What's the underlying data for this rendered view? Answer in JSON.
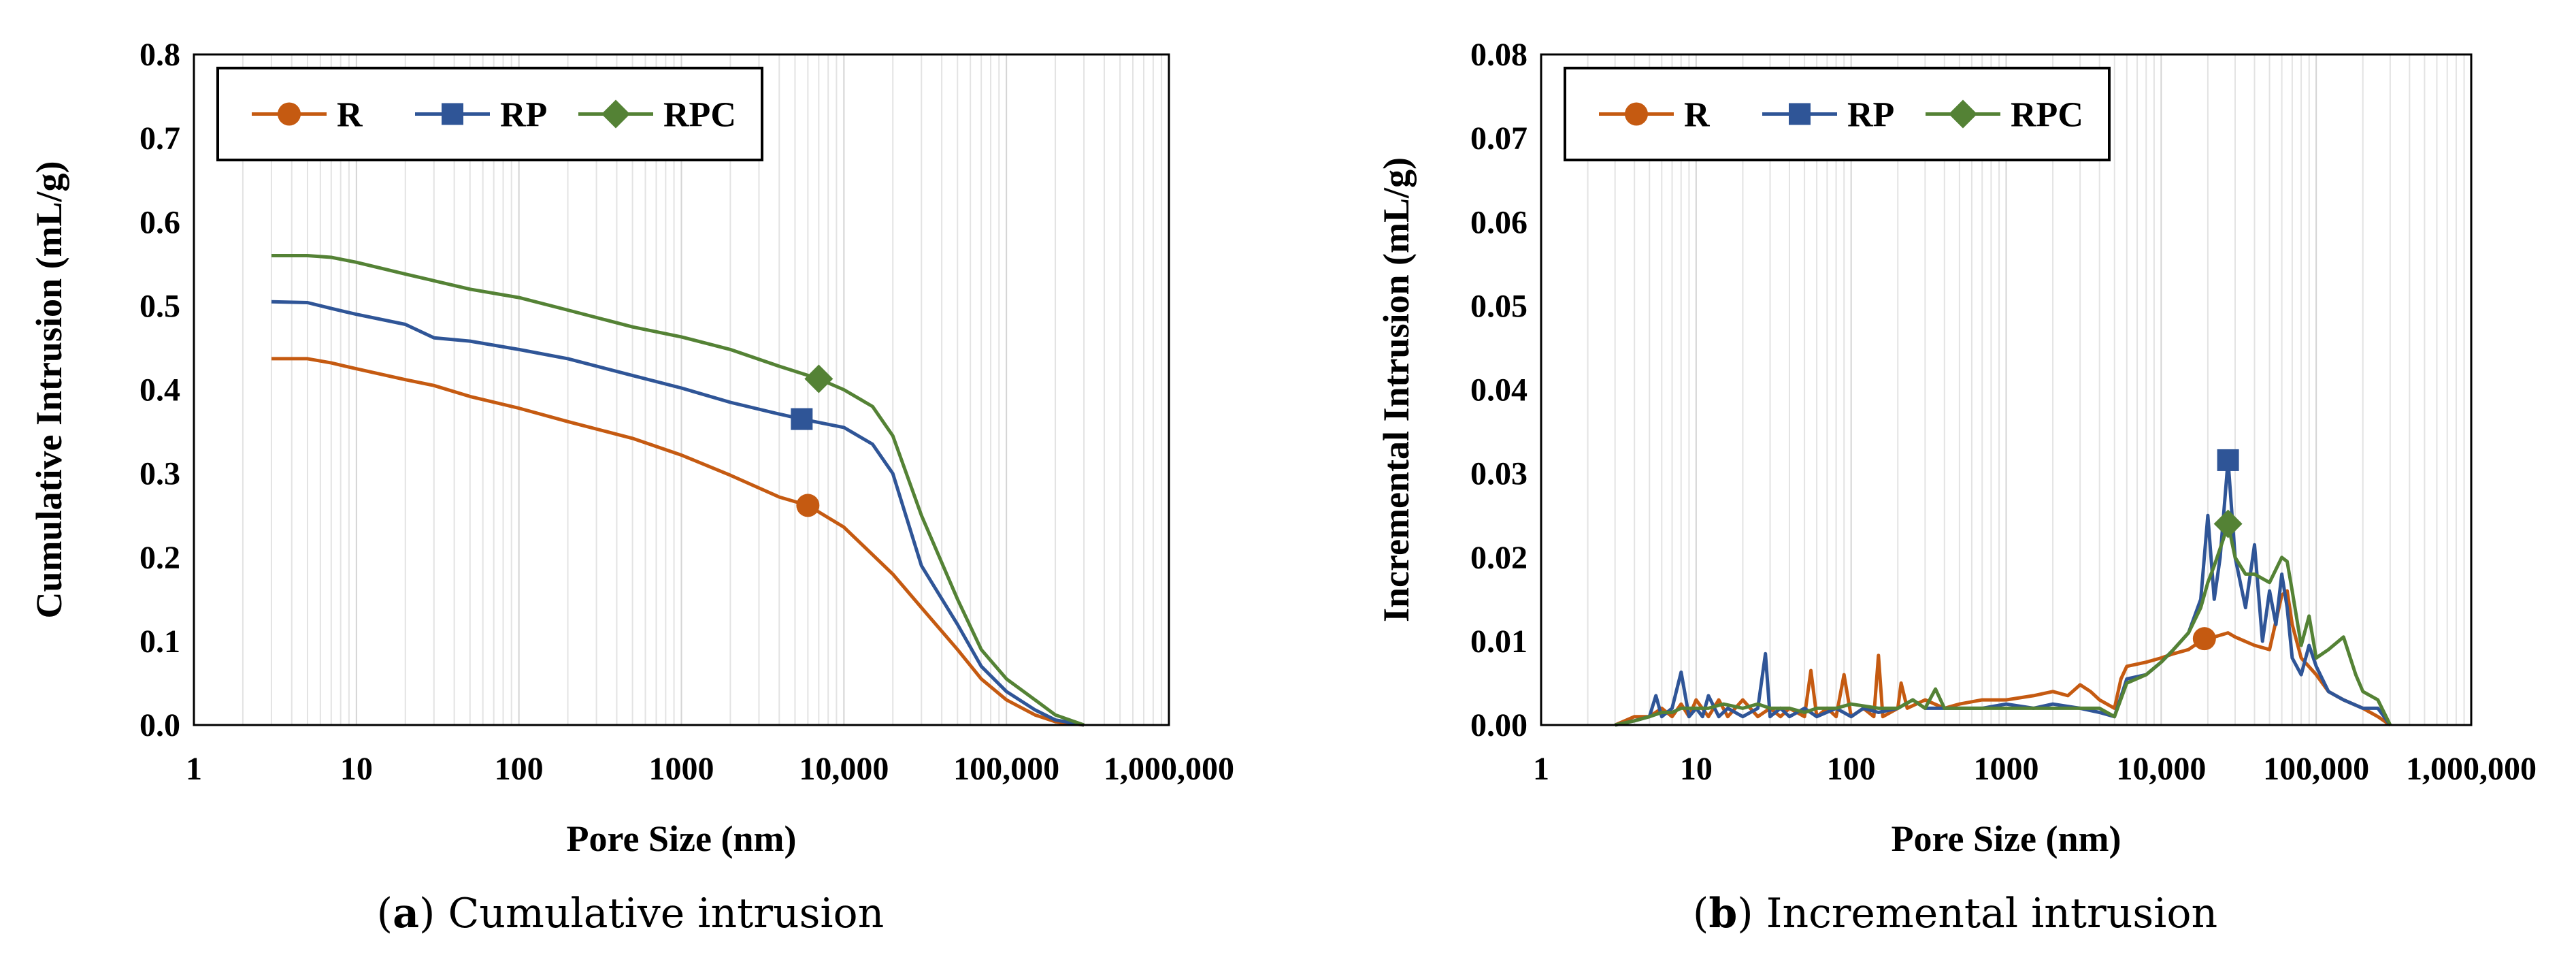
{
  "colors": {
    "R": "#C55A11",
    "RP": "#2F5597",
    "RPC": "#548235"
  },
  "captions": {
    "a_letter": "a",
    "a_text": "Cumulative intrusion",
    "b_letter": "b",
    "b_text": "Incremental intrusion"
  },
  "chart_data": [
    {
      "type": "line",
      "title": "",
      "xlabel": "Pore Size (nm)",
      "ylabel": "Cumulative Intrusion (mL/g)",
      "xscale": "log",
      "xlim": [
        1,
        1000000
      ],
      "ylim": [
        0,
        0.8
      ],
      "xticks": [
        1,
        10,
        100,
        1000,
        10000,
        100000,
        1000000
      ],
      "xtick_labels": [
        "1",
        "10",
        "100",
        "1000",
        "10,000",
        "100,000",
        "1,000,000"
      ],
      "yticks": [
        0,
        0.1,
        0.2,
        0.3,
        0.4,
        0.5,
        0.6,
        0.7,
        0.8
      ],
      "ytick_labels": [
        "0.0",
        "0.1",
        "0.2",
        "0.3",
        "0.4",
        "0.5",
        "0.6",
        "0.7",
        "0.8"
      ],
      "legend": "top-left",
      "series": [
        {
          "name": "R",
          "marker": "circle",
          "marker_at": [
            6000,
            0.262
          ],
          "x": [
            3,
            5,
            7,
            10,
            20,
            30,
            50,
            100,
            200,
            500,
            1000,
            2000,
            4000,
            6000,
            10000,
            20000,
            30000,
            50000,
            70000,
            100000,
            150000,
            200000,
            300000
          ],
          "y": [
            0.437,
            0.437,
            0.432,
            0.425,
            0.412,
            0.405,
            0.392,
            0.378,
            0.362,
            0.342,
            0.322,
            0.298,
            0.272,
            0.262,
            0.236,
            0.18,
            0.14,
            0.09,
            0.055,
            0.03,
            0.012,
            0.004,
            0.0
          ]
        },
        {
          "name": "RP",
          "marker": "square",
          "marker_at": [
            5500,
            0.365
          ],
          "x": [
            3,
            5,
            7,
            10,
            20,
            30,
            50,
            100,
            200,
            500,
            1000,
            2000,
            4000,
            5500,
            10000,
            15000,
            20000,
            30000,
            50000,
            70000,
            100000,
            150000,
            200000,
            300000
          ],
          "y": [
            0.505,
            0.504,
            0.497,
            0.49,
            0.478,
            0.462,
            0.458,
            0.448,
            0.437,
            0.417,
            0.402,
            0.385,
            0.371,
            0.365,
            0.355,
            0.335,
            0.3,
            0.19,
            0.12,
            0.07,
            0.04,
            0.018,
            0.006,
            0.0
          ]
        },
        {
          "name": "RPC",
          "marker": "diamond",
          "marker_at": [
            7000,
            0.413
          ],
          "x": [
            3,
            5,
            7,
            10,
            20,
            30,
            50,
            100,
            200,
            500,
            1000,
            2000,
            4000,
            7000,
            10000,
            15000,
            20000,
            30000,
            50000,
            70000,
            100000,
            150000,
            200000,
            300000
          ],
          "y": [
            0.56,
            0.56,
            0.558,
            0.552,
            0.538,
            0.53,
            0.52,
            0.51,
            0.495,
            0.475,
            0.463,
            0.448,
            0.428,
            0.413,
            0.4,
            0.38,
            0.345,
            0.25,
            0.15,
            0.09,
            0.055,
            0.03,
            0.012,
            0.0
          ]
        }
      ]
    },
    {
      "type": "line",
      "title": "",
      "xlabel": "Pore Size (nm)",
      "ylabel": "Incremental Intrusion (mL/g)",
      "xscale": "log",
      "xlim": [
        1,
        1000000
      ],
      "ylim": [
        0,
        0.08
      ],
      "xticks": [
        1,
        10,
        100,
        1000,
        10000,
        100000,
        1000000
      ],
      "xtick_labels": [
        "1",
        "10",
        "100",
        "1000",
        "10,000",
        "100,000",
        "1,000,000"
      ],
      "yticks": [
        0,
        0.01,
        0.02,
        0.03,
        0.04,
        0.05,
        0.06,
        0.07,
        0.08
      ],
      "ytick_labels": [
        "0.00",
        "0.01",
        "0.02",
        "0.03",
        "0.04",
        "0.05",
        "0.06",
        "0.07",
        "0.08"
      ],
      "legend": "top-left",
      "series": [
        {
          "name": "R",
          "marker": "circle",
          "marker_at": [
            19000,
            0.0103
          ],
          "x": [
            3,
            4,
            5,
            6,
            7,
            8,
            9,
            10,
            12,
            14,
            16,
            20,
            25,
            30,
            35,
            40,
            50,
            55,
            60,
            70,
            80,
            90,
            100,
            120,
            140,
            150,
            160,
            200,
            210,
            230,
            300,
            400,
            500,
            700,
            1000,
            1500,
            2000,
            2500,
            3000,
            3500,
            4000,
            5000,
            5500,
            6000,
            8000,
            10000,
            12000,
            15000,
            19000,
            22000,
            27000,
            30000,
            40000,
            50000,
            60000,
            65000,
            70000,
            80000,
            100000,
            120000,
            150000,
            200000,
            250000,
            300000
          ],
          "y": [
            0.0,
            0.001,
            0.001,
            0.002,
            0.001,
            0.0025,
            0.001,
            0.003,
            0.001,
            0.003,
            0.001,
            0.003,
            0.001,
            0.002,
            0.001,
            0.002,
            0.001,
            0.0065,
            0.001,
            0.002,
            0.001,
            0.006,
            0.001,
            0.002,
            0.001,
            0.0083,
            0.001,
            0.002,
            0.005,
            0.002,
            0.003,
            0.002,
            0.0025,
            0.003,
            0.003,
            0.0035,
            0.004,
            0.0035,
            0.0048,
            0.004,
            0.003,
            0.002,
            0.0055,
            0.007,
            0.0075,
            0.008,
            0.0085,
            0.009,
            0.0103,
            0.0105,
            0.011,
            0.0105,
            0.0095,
            0.009,
            0.0155,
            0.016,
            0.012,
            0.008,
            0.006,
            0.004,
            0.003,
            0.002,
            0.001,
            0.0
          ]
        },
        {
          "name": "RP",
          "marker": "square",
          "marker_at": [
            27000,
            0.0316
          ],
          "x": [
            3,
            4,
            5,
            5.5,
            6,
            7,
            8,
            9,
            10,
            11,
            12,
            14,
            16,
            20,
            25,
            28,
            30,
            35,
            40,
            50,
            60,
            80,
            100,
            120,
            150,
            200,
            250,
            300,
            400,
            500,
            700,
            1000,
            1500,
            2000,
            3000,
            4000,
            5000,
            6000,
            8000,
            10000,
            12000,
            15000,
            18000,
            20000,
            22000,
            24000,
            27000,
            30000,
            35000,
            40000,
            45000,
            50000,
            55000,
            60000,
            65000,
            70000,
            80000,
            90000,
            100000,
            120000,
            150000,
            200000,
            250000,
            300000
          ],
          "y": [
            0.0,
            0.0005,
            0.001,
            0.0035,
            0.001,
            0.002,
            0.0063,
            0.001,
            0.002,
            0.001,
            0.0035,
            0.001,
            0.002,
            0.001,
            0.002,
            0.0085,
            0.001,
            0.002,
            0.001,
            0.002,
            0.001,
            0.002,
            0.001,
            0.002,
            0.0015,
            0.002,
            0.003,
            0.002,
            0.002,
            0.002,
            0.002,
            0.0025,
            0.002,
            0.0025,
            0.002,
            0.0015,
            0.001,
            0.0055,
            0.006,
            0.0075,
            0.009,
            0.011,
            0.015,
            0.025,
            0.015,
            0.02,
            0.0316,
            0.02,
            0.014,
            0.0215,
            0.01,
            0.016,
            0.012,
            0.018,
            0.014,
            0.008,
            0.006,
            0.0095,
            0.007,
            0.004,
            0.003,
            0.002,
            0.002,
            0.0
          ]
        },
        {
          "name": "RPC",
          "marker": "diamond",
          "marker_at": [
            27000,
            0.024
          ],
          "x": [
            3,
            4,
            5,
            6,
            7,
            8,
            10,
            12,
            15,
            20,
            25,
            30,
            40,
            50,
            60,
            80,
            100,
            150,
            200,
            250,
            300,
            350,
            400,
            500,
            700,
            1000,
            1500,
            2000,
            3000,
            4000,
            5000,
            6000,
            8000,
            10000,
            12000,
            15000,
            18000,
            20000,
            22000,
            25000,
            27000,
            30000,
            35000,
            40000,
            50000,
            60000,
            65000,
            70000,
            80000,
            90000,
            100000,
            120000,
            150000,
            180000,
            200000,
            250000,
            300000
          ],
          "y": [
            0.0,
            0.0005,
            0.001,
            0.0015,
            0.0015,
            0.002,
            0.002,
            0.002,
            0.0025,
            0.002,
            0.0025,
            0.002,
            0.002,
            0.0015,
            0.002,
            0.002,
            0.0025,
            0.002,
            0.002,
            0.003,
            0.002,
            0.0043,
            0.002,
            0.002,
            0.002,
            0.002,
            0.002,
            0.002,
            0.002,
            0.002,
            0.001,
            0.005,
            0.006,
            0.0075,
            0.009,
            0.011,
            0.014,
            0.017,
            0.019,
            0.022,
            0.024,
            0.02,
            0.018,
            0.018,
            0.017,
            0.02,
            0.0195,
            0.016,
            0.0095,
            0.013,
            0.008,
            0.009,
            0.0105,
            0.006,
            0.004,
            0.003,
            0.0
          ]
        }
      ]
    }
  ]
}
